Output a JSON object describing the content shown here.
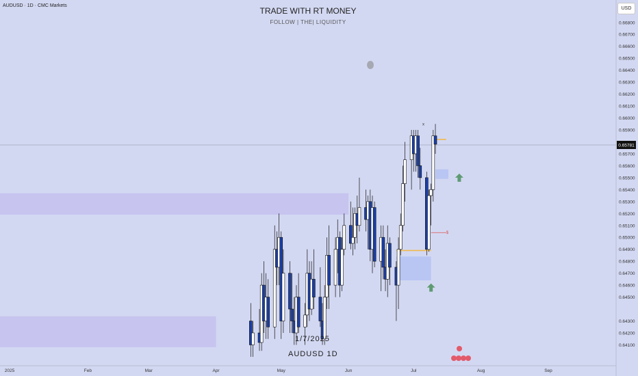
{
  "header": {
    "symbol": "AUDUSD · 1D · CMC Markets",
    "title": "TRADE WITH RT MONEY",
    "subtitle": "FOLLOW  |  THE|  LIQUIDITY",
    "currency": "USD"
  },
  "watermark": {
    "date": "1/7/2025",
    "pair": "AUDUSD 1D"
  },
  "current_price": "0.65781",
  "colors": {
    "bull": "#ffffff",
    "bear": "#1a3fa8",
    "outline": "#111111",
    "zone": "#c5c2ee",
    "zone_blue": "#b6c4f4",
    "level": "#f0b84a",
    "arrow": "#5e9b73",
    "crosshair": "#8a8fa3"
  },
  "chart_data": {
    "type": "candlestick",
    "ylim": [
      0.6405,
      0.6685
    ],
    "y_ticks": [
      "0.66800",
      "0.66700",
      "0.66600",
      "0.66500",
      "0.66400",
      "0.66300",
      "0.66200",
      "0.66100",
      "0.66000",
      "0.65900",
      "0.65700",
      "0.65600",
      "0.65500",
      "0.65400",
      "0.65300",
      "0.65200",
      "0.65100",
      "0.65000",
      "0.64900",
      "0.64800",
      "0.64700",
      "0.64600",
      "0.64500",
      "0.64300",
      "0.64200",
      "0.64100"
    ],
    "x_ticks": [
      "2025",
      "Feb",
      "Mar",
      "Apr",
      "May",
      "Jun",
      "Jul",
      "Aug",
      "Sep"
    ],
    "candles": [
      {
        "d": "2025-04-17",
        "o": 0.643,
        "h": 0.6445,
        "l": 0.64,
        "c": 0.641
      },
      {
        "d": "2025-04-18",
        "o": 0.641,
        "h": 0.643,
        "l": 0.64,
        "c": 0.642
      },
      {
        "d": "2025-04-21",
        "o": 0.642,
        "h": 0.644,
        "l": 0.6405,
        "c": 0.6412
      },
      {
        "d": "2025-04-22",
        "o": 0.6412,
        "h": 0.647,
        "l": 0.6405,
        "c": 0.646
      },
      {
        "d": "2025-04-23",
        "o": 0.646,
        "h": 0.648,
        "l": 0.642,
        "c": 0.643
      },
      {
        "d": "2025-04-24",
        "o": 0.643,
        "h": 0.647,
        "l": 0.6415,
        "c": 0.645
      },
      {
        "d": "2025-04-25",
        "o": 0.645,
        "h": 0.6465,
        "l": 0.6415,
        "c": 0.6425
      },
      {
        "d": "2025-04-28",
        "o": 0.6425,
        "h": 0.651,
        "l": 0.6415,
        "c": 0.649
      },
      {
        "d": "2025-04-29",
        "o": 0.649,
        "h": 0.6505,
        "l": 0.646,
        "c": 0.6475
      },
      {
        "d": "2025-04-30",
        "o": 0.6475,
        "h": 0.652,
        "l": 0.646,
        "c": 0.65
      },
      {
        "d": "2025-05-01",
        "o": 0.65,
        "h": 0.6505,
        "l": 0.6415,
        "c": 0.643
      },
      {
        "d": "2025-05-02",
        "o": 0.643,
        "h": 0.649,
        "l": 0.642,
        "c": 0.647
      },
      {
        "d": "2025-05-05",
        "o": 0.647,
        "h": 0.648,
        "l": 0.642,
        "c": 0.644
      },
      {
        "d": "2025-05-06",
        "o": 0.644,
        "h": 0.647,
        "l": 0.642,
        "c": 0.643
      },
      {
        "d": "2025-05-07",
        "o": 0.643,
        "h": 0.645,
        "l": 0.641,
        "c": 0.642
      },
      {
        "d": "2025-05-08",
        "o": 0.642,
        "h": 0.646,
        "l": 0.641,
        "c": 0.645
      },
      {
        "d": "2025-05-09",
        "o": 0.645,
        "h": 0.647,
        "l": 0.642,
        "c": 0.6425
      },
      {
        "d": "2025-05-12",
        "o": 0.6425,
        "h": 0.6445,
        "l": 0.641,
        "c": 0.6435
      },
      {
        "d": "2025-05-13",
        "o": 0.6435,
        "h": 0.649,
        "l": 0.6425,
        "c": 0.647
      },
      {
        "d": "2025-05-14",
        "o": 0.647,
        "h": 0.648,
        "l": 0.643,
        "c": 0.644
      },
      {
        "d": "2025-05-15",
        "o": 0.644,
        "h": 0.648,
        "l": 0.6435,
        "c": 0.6465
      },
      {
        "d": "2025-05-16",
        "o": 0.6465,
        "h": 0.649,
        "l": 0.644,
        "c": 0.645
      },
      {
        "d": "2025-05-19",
        "o": 0.645,
        "h": 0.6475,
        "l": 0.6425,
        "c": 0.643
      },
      {
        "d": "2025-05-20",
        "o": 0.643,
        "h": 0.6445,
        "l": 0.641,
        "c": 0.6415
      },
      {
        "d": "2025-05-21",
        "o": 0.6415,
        "h": 0.646,
        "l": 0.641,
        "c": 0.645
      },
      {
        "d": "2025-05-22",
        "o": 0.645,
        "h": 0.65,
        "l": 0.644,
        "c": 0.6485
      },
      {
        "d": "2025-05-23",
        "o": 0.6485,
        "h": 0.651,
        "l": 0.644,
        "c": 0.646
      },
      {
        "d": "2025-05-26",
        "o": 0.646,
        "h": 0.65,
        "l": 0.645,
        "c": 0.649
      },
      {
        "d": "2025-05-27",
        "o": 0.649,
        "h": 0.6515,
        "l": 0.647,
        "c": 0.65
      },
      {
        "d": "2025-05-28",
        "o": 0.65,
        "h": 0.6505,
        "l": 0.645,
        "c": 0.646
      },
      {
        "d": "2025-05-29",
        "o": 0.646,
        "h": 0.65,
        "l": 0.6455,
        "c": 0.649
      },
      {
        "d": "2025-05-30",
        "o": 0.649,
        "h": 0.652,
        "l": 0.6485,
        "c": 0.651
      },
      {
        "d": "2025-06-02",
        "o": 0.651,
        "h": 0.653,
        "l": 0.649,
        "c": 0.6495
      },
      {
        "d": "2025-06-03",
        "o": 0.6495,
        "h": 0.6525,
        "l": 0.6485,
        "c": 0.65
      },
      {
        "d": "2025-06-04",
        "o": 0.65,
        "h": 0.6525,
        "l": 0.649,
        "c": 0.652
      },
      {
        "d": "2025-06-05",
        "o": 0.652,
        "h": 0.6535,
        "l": 0.6495,
        "c": 0.651
      },
      {
        "d": "2025-06-06",
        "o": 0.651,
        "h": 0.655,
        "l": 0.6505,
        "c": 0.6525
      },
      {
        "d": "2025-06-09",
        "o": 0.6525,
        "h": 0.654,
        "l": 0.6505,
        "c": 0.6515
      },
      {
        "d": "2025-06-10",
        "o": 0.6515,
        "h": 0.6535,
        "l": 0.649,
        "c": 0.653
      },
      {
        "d": "2025-06-11",
        "o": 0.653,
        "h": 0.654,
        "l": 0.648,
        "c": 0.649
      },
      {
        "d": "2025-06-12",
        "o": 0.649,
        "h": 0.6535,
        "l": 0.647,
        "c": 0.6525
      },
      {
        "d": "2025-06-13",
        "o": 0.6525,
        "h": 0.653,
        "l": 0.6475,
        "c": 0.648
      },
      {
        "d": "2025-06-16",
        "o": 0.648,
        "h": 0.651,
        "l": 0.6455,
        "c": 0.65
      },
      {
        "d": "2025-06-17",
        "o": 0.65,
        "h": 0.651,
        "l": 0.6465,
        "c": 0.6475
      },
      {
        "d": "2025-06-18",
        "o": 0.6475,
        "h": 0.649,
        "l": 0.6455,
        "c": 0.6465
      },
      {
        "d": "2025-06-19",
        "o": 0.6465,
        "h": 0.651,
        "l": 0.645,
        "c": 0.6495
      },
      {
        "d": "2025-06-20",
        "o": 0.6495,
        "h": 0.65,
        "l": 0.646,
        "c": 0.6475
      },
      {
        "d": "2025-06-23",
        "o": 0.6475,
        "h": 0.648,
        "l": 0.643,
        "c": 0.646
      },
      {
        "d": "2025-06-24",
        "o": 0.646,
        "h": 0.65,
        "l": 0.644,
        "c": 0.649
      },
      {
        "d": "2025-06-25",
        "o": 0.649,
        "h": 0.652,
        "l": 0.6485,
        "c": 0.651
      },
      {
        "d": "2025-06-26",
        "o": 0.651,
        "h": 0.656,
        "l": 0.6505,
        "c": 0.6545
      },
      {
        "d": "2025-06-27",
        "o": 0.6545,
        "h": 0.658,
        "l": 0.653,
        "c": 0.6565
      },
      {
        "d": "2025-06-30",
        "o": 0.6565,
        "h": 0.659,
        "l": 0.654,
        "c": 0.6585
      },
      {
        "d": "2025-07-01",
        "o": 0.6585,
        "h": 0.659,
        "l": 0.6555,
        "c": 0.657
      },
      {
        "d": "2025-07-02",
        "o": 0.657,
        "h": 0.659,
        "l": 0.6555,
        "c": 0.6585
      },
      {
        "d": "2025-07-03",
        "o": 0.6585,
        "h": 0.659,
        "l": 0.655,
        "c": 0.656
      },
      {
        "d": "2025-07-04",
        "o": 0.656,
        "h": 0.6575,
        "l": 0.654,
        "c": 0.655
      },
      {
        "d": "2025-07-07",
        "o": 0.655,
        "h": 0.6555,
        "l": 0.6485,
        "c": 0.649
      },
      {
        "d": "2025-07-08",
        "o": 0.649,
        "h": 0.654,
        "l": 0.6488,
        "c": 0.6535
      },
      {
        "d": "2025-07-09",
        "o": 0.6535,
        "h": 0.6545,
        "l": 0.651,
        "c": 0.654
      },
      {
        "d": "2025-07-10",
        "o": 0.654,
        "h": 0.659,
        "l": 0.653,
        "c": 0.6585
      },
      {
        "d": "2025-07-11",
        "o": 0.6585,
        "h": 0.6595,
        "l": 0.657,
        "c": 0.6578
      }
    ],
    "zones": [
      {
        "from": "2025-01-01",
        "to": "2025-06-01",
        "top": 0.6537,
        "bottom": 0.6519,
        "style": "purple"
      },
      {
        "from": "2025-01-01",
        "to": "2025-04-01",
        "top": 0.6434,
        "bottom": 0.6408,
        "style": "purple"
      },
      {
        "from": "2025-06-23",
        "to": "2025-07-09",
        "top": 0.6484,
        "bottom": 0.6464,
        "style": "blue"
      },
      {
        "from": "2025-07-11",
        "to": "2025-07-17",
        "top": 0.6557,
        "bottom": 0.6549,
        "style": "blue"
      }
    ],
    "levels": [
      {
        "from": "2025-06-23",
        "to": "2025-07-09",
        "price": 0.6489,
        "color": "orange"
      },
      {
        "from": "2025-07-11",
        "to": "2025-07-16",
        "price": 0.6582,
        "color": "orange"
      },
      {
        "from": "2025-07-09",
        "to": "2025-07-16",
        "price": 0.6504,
        "color": "red"
      }
    ],
    "annotations": [
      {
        "type": "arrow-up",
        "d": "2025-07-09",
        "price": 0.6458
      },
      {
        "type": "arrow-up",
        "d": "2025-07-22",
        "price": 0.655
      },
      {
        "type": "label",
        "d": "2025-07-16",
        "price": 0.6504,
        "text": "$"
      },
      {
        "type": "label",
        "d": "2025-07-05",
        "price": 0.6595,
        "text": "x"
      }
    ]
  }
}
